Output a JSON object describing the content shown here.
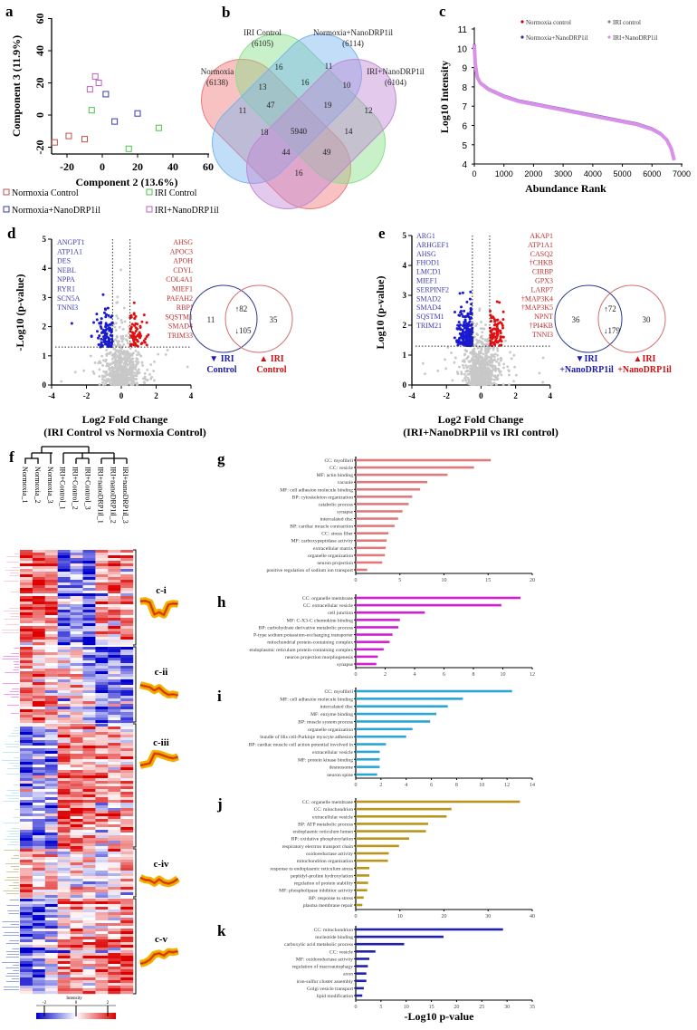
{
  "chart_data": [
    {
      "panel": "a",
      "type": "scatter",
      "xlabel": "Component 2 (13.6%)",
      "ylabel": "Component 3 (11.9%)",
      "xticks": [
        -20,
        0,
        20,
        40,
        60
      ],
      "yticks": [
        -20,
        0,
        20,
        40,
        60
      ],
      "xlim": [
        -30,
        60
      ],
      "ylim": [
        -25,
        60
      ],
      "series": [
        {
          "name": "Normoxia Control",
          "color": "#c0504d",
          "points": [
            [
              -27,
              -17
            ],
            [
              -19,
              -13
            ],
            [
              -10,
              -15
            ]
          ]
        },
        {
          "name": "IRI Control",
          "color": "#4cc44c",
          "points": [
            [
              -6,
              3
            ],
            [
              15,
              -21
            ],
            [
              32,
              -8
            ]
          ]
        },
        {
          "name": "Normoxia+NanoDRP1il",
          "color": "#3a3aa8",
          "points": [
            [
              2,
              13
            ],
            [
              7,
              -4
            ],
            [
              20,
              1
            ]
          ]
        },
        {
          "name": "IRI+NanoDRP1il",
          "color": "#c060c0",
          "points": [
            [
              -4,
              24
            ],
            [
              -2,
              20
            ],
            [
              -7,
              16
            ]
          ]
        }
      ]
    },
    {
      "panel": "b",
      "type": "venn",
      "sets": [
        {
          "name": "Normoxia",
          "total": "(6138)",
          "color": "#f07878"
        },
        {
          "name": "IRI Control",
          "total": "(6105)",
          "color": "#88e088"
        },
        {
          "name": "Normoxia+NanoDRP1il",
          "total": "(6114)",
          "color": "#78b4f0"
        },
        {
          "name": "IRI+NanoDRP1il",
          "total": "(6104)",
          "color": "#c088d4"
        }
      ],
      "region_counts": [
        16,
        11,
        13,
        16,
        10,
        47,
        19,
        11,
        12,
        18,
        5940,
        14,
        44,
        49,
        16
      ]
    },
    {
      "panel": "c",
      "type": "line",
      "xlabel": "Abundance Rank",
      "ylabel": "Log10 Intensity",
      "xticks": [
        0,
        1000,
        2000,
        3000,
        4000,
        5000,
        6000,
        7000
      ],
      "yticks": [
        4,
        5,
        6,
        7,
        8,
        9,
        10,
        11
      ],
      "xlim": [
        0,
        7000
      ],
      "ylim": [
        4,
        11
      ],
      "legend": [
        {
          "name": "Normoxia control",
          "color": "#c00000"
        },
        {
          "name": "IRI control",
          "color": "#8a8a8a"
        },
        {
          "name": "Normoxia+NanoDRP1il",
          "color": "#303090"
        },
        {
          "name": "IRI+NanoDRP1il",
          "color": "#d890e8"
        }
      ],
      "curve": [
        [
          0,
          10.2
        ],
        [
          30,
          9.2
        ],
        [
          100,
          8.5
        ],
        [
          200,
          8.2
        ],
        [
          500,
          7.85
        ],
        [
          1000,
          7.5
        ],
        [
          1500,
          7.25
        ],
        [
          2000,
          7.1
        ],
        [
          2500,
          6.95
        ],
        [
          3000,
          6.8
        ],
        [
          3500,
          6.65
        ],
        [
          4000,
          6.5
        ],
        [
          4500,
          6.35
        ],
        [
          5000,
          6.2
        ],
        [
          5500,
          6.05
        ],
        [
          6000,
          5.8
        ],
        [
          6300,
          5.55
        ],
        [
          6500,
          5.25
        ],
        [
          6650,
          4.8
        ],
        [
          6750,
          4.2
        ]
      ]
    },
    {
      "panel": "d",
      "type": "scatter",
      "xlabel": [
        "Log2 Fold Change",
        "(IRI Control vs Normoxia Control)"
      ],
      "ylabel": "-Log10 (p-value)",
      "xticks": [
        -4,
        -2,
        0,
        2,
        4
      ],
      "yticks": [
        0,
        1,
        2,
        3,
        4,
        5
      ],
      "xlim": [
        -4,
        4
      ],
      "ylim": [
        0,
        5
      ],
      "fc_threshold": 0.5,
      "p_threshold": 1.3,
      "down_genes": [
        "ANGPT1",
        "ATP1A1",
        "DES",
        "NEBL",
        "NPPA",
        "RYR1",
        "SCN5A",
        "TNNI3"
      ],
      "up_genes": [
        "AHSG",
        "APOC3",
        "APOH",
        "CDYL",
        "COL4A1",
        "MIEF1",
        "PAFAH2",
        "RBPJ",
        "SQSTM1",
        "SMAD4",
        "TRIM33"
      ],
      "venn": {
        "left": "11",
        "up": "↑82",
        "down": "↓105",
        "right": "35",
        "left_label": [
          "▼ IRI",
          "Control"
        ],
        "right_label": [
          "▲ IRI",
          "Control"
        ]
      }
    },
    {
      "panel": "e",
      "type": "scatter",
      "xlabel": [
        "Log2 Fold Change",
        "(IRI+NanoDRP1il vs IRI control)"
      ],
      "ylabel": "Log10 (p-value)",
      "xticks": [
        -4,
        -2,
        0,
        2,
        4
      ],
      "yticks": [
        0,
        1,
        2,
        3,
        4,
        5
      ],
      "xlim": [
        -4,
        4
      ],
      "ylim": [
        0,
        5
      ],
      "fc_threshold": 0.5,
      "p_threshold": 1.3,
      "down_genes": [
        "ARG1",
        "ARHGEF1",
        "AHSG",
        "FHOD1",
        "LMCD1",
        "MIEF1",
        "SERPINF2",
        "SMAD2",
        "SMAD4",
        "SQSTM1",
        "TRIM21"
      ],
      "up_genes": [
        "AKAP1",
        "ATP1A1",
        "CASQ2",
        "†CHKB",
        "CIRBP",
        "GPX3",
        "LARP7",
        "†MAP3K4",
        "†MAP3K5",
        "NPNT",
        "†PI4KB",
        "TNNI3"
      ],
      "venn": {
        "left": "36",
        "up": "↑72",
        "down": "↓179",
        "right": "30",
        "left_label": [
          "▼IRI",
          "+NanoDRP1il"
        ],
        "right_label": [
          "▲IRI",
          "+NanoDRP1il"
        ]
      }
    },
    {
      "panel": "f",
      "type": "heatmap",
      "columns": [
        "Normoxia_1",
        "Normoxia_2",
        "Normoxia_3",
        "IRI+Control_1",
        "IRI+Control_2",
        "IRI+Control_3",
        "IRI+nanoDRP1il_1",
        "IRI+nanoDRP1il_2",
        "IRI+nanoDRP1il_3"
      ],
      "clusters": [
        {
          "name": "c-i",
          "profile": [
            1.2,
            1.3,
            1.0,
            -1.2,
            -0.8,
            -1.3,
            0.6,
            0.8,
            0.7
          ]
        },
        {
          "name": "c-ii",
          "profile": [
            0.8,
            0.6,
            0.4,
            -0.2,
            0.3,
            -0.5,
            -1.0,
            -0.9,
            -1.1
          ]
        },
        {
          "name": "c-iii",
          "profile": [
            -1.0,
            -0.8,
            -0.6,
            1.2,
            1.1,
            0.8,
            0.5,
            0.3,
            0.6
          ]
        },
        {
          "name": "c-iv",
          "profile": [
            0.7,
            0.3,
            0.2,
            -0.3,
            0.4,
            -0.2,
            -0.4,
            -0.1,
            0.5
          ]
        },
        {
          "name": "c-v",
          "profile": [
            -1.3,
            -1.1,
            -0.6,
            0.4,
            0.6,
            0.2,
            0.9,
            0.8,
            1.0
          ]
        }
      ],
      "colorbar": {
        "label": "Intensity",
        "ticks": [
          -2,
          0,
          2
        ],
        "colors": [
          "#0000cc",
          "#ffffff",
          "#dd0000"
        ]
      }
    },
    {
      "panel": "g",
      "type": "bar",
      "color": "#e07a7a",
      "xticks": [
        0,
        5,
        10,
        15,
        20
      ],
      "xlim": [
        0,
        20
      ],
      "categories": [
        "CC: myofibril",
        "CC: vesicle",
        "MF: actin binding",
        "vacuole",
        "MF: cell adhesion molecule binding",
        "BP: cytoskeleton organization",
        "catabolic process",
        "synapse",
        "intercalated disc",
        "BP: cardiac muscle contraction",
        "CC: stress fiber",
        "MF: carboxypeptidase activity",
        "extracellular matrix",
        "organelle organization",
        "neuron projection",
        "positive regulation of sodium ion transport"
      ],
      "values": [
        15.3,
        13.4,
        10.4,
        8.1,
        7.3,
        6.4,
        6.0,
        5.3,
        4.8,
        4.4,
        3.7,
        3.5,
        3.4,
        3.3,
        3.0,
        1.3
      ]
    },
    {
      "panel": "h",
      "type": "bar",
      "color": "#d020d0",
      "xticks": [
        0,
        2,
        4,
        6,
        8,
        10,
        12
      ],
      "xlim": [
        0,
        12
      ],
      "categories": [
        "CC: organelle membrane",
        "CC: extracellular vesicle",
        "cell junction",
        "MF: C-X3-C chemokine binding",
        "BP: carbohydrate derivative metabolic process",
        "P-type sodium:potassium-exchanging transporter",
        "mitochondrial protein-containing complex",
        "endoplasmic reticulum protein-containing complex",
        "neuron projection morphogenesis",
        "synapse"
      ],
      "values": [
        11.2,
        9.9,
        4.7,
        3.0,
        2.9,
        2.5,
        2.3,
        1.9,
        1.5,
        1.4
      ]
    },
    {
      "panel": "i",
      "type": "bar",
      "color": "#2aa6d6",
      "xticks": [
        0,
        2,
        4,
        6,
        8,
        10,
        12,
        14
      ],
      "xlim": [
        0,
        14
      ],
      "categories": [
        "CC: myofibril",
        "MF: cell adhesion molecule binding",
        "intercalated disc",
        "MF: enzyme binding",
        "BP: muscle system process",
        "organelle organization",
        "bundle of His cell-Purkinje myocyte adhesion",
        "BP: cardiac muscle cell action potential involved in",
        "extracellular vesicle",
        "MF: protein kinase binding",
        "desmosome",
        "neuron spine"
      ],
      "values": [
        12.4,
        8.5,
        7.3,
        6.4,
        5.9,
        4.5,
        4.0,
        2.4,
        1.9,
        1.9,
        1.9,
        1.7
      ]
    },
    {
      "panel": "j",
      "type": "bar",
      "color": "#b8961e",
      "xticks": [
        0,
        10,
        20,
        30,
        40
      ],
      "xlim": [
        0,
        40
      ],
      "categories": [
        "CC: organelle membrane",
        "CC: mitochondrion",
        "extracellular vesicle",
        "BP: ATP metabolic process",
        "endoplasmic reticulum lumen",
        "BP: oxidative phosphorylation",
        "respiratory electron transport chain",
        "oxidoreductase activity",
        "mitochondrion organization",
        "response to endoplasmic reticulum stress",
        "peptidyl-proline hydroxylation",
        "regulation of protein stability",
        "MF: phospholipase inhibitor activity",
        "BP: response to stress",
        "plasma membrane repair"
      ],
      "values": [
        37.2,
        21.7,
        20.6,
        16.4,
        15.9,
        12.1,
        9.8,
        7.5,
        7.3,
        3.1,
        3.1,
        2.8,
        2.6,
        1.8,
        1.5
      ]
    },
    {
      "panel": "k",
      "type": "bar",
      "color": "#2020b0",
      "xticks": [
        0,
        5,
        10,
        15,
        20,
        25,
        30,
        35
      ],
      "xlim": [
        0,
        35
      ],
      "xlabel": "-Log10 p-value",
      "categories": [
        "CC: mitochondrion",
        "nucleotide binding",
        "carboxylic acid metabolic process",
        "CC: vesicle",
        "MF: oxidoreductase activity",
        "regulation of macroautophagy",
        "axon",
        "iron-sulfur cluster assembly",
        "Golgi vesicle transport",
        "lipid modification"
      ],
      "values": [
        29.2,
        17.4,
        9.6,
        3.9,
        2.7,
        2.4,
        2.1,
        2.1,
        1.6,
        1.3
      ]
    }
  ]
}
